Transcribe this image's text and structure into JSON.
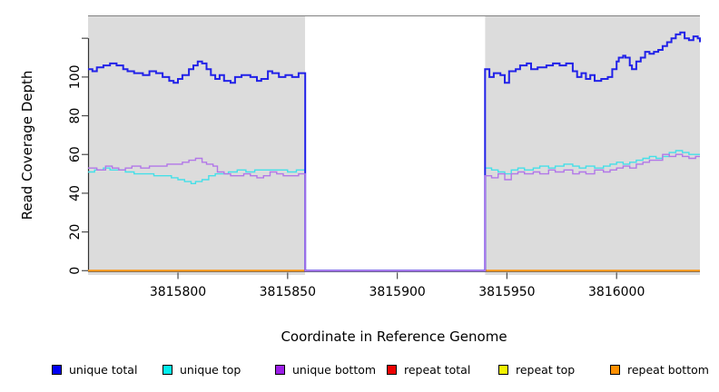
{
  "figure": {
    "xlabel": "Coordinate in Reference Genome",
    "ylabel": "Read Coverage Depth"
  },
  "chart_data": {
    "type": "line",
    "subtype": "step-coverage-plot",
    "title": "",
    "xlabel": "Coordinate in Reference Genome",
    "ylabel": "Read Coverage Depth",
    "xlim": [
      3815759,
      3816038
    ],
    "ylim": [
      -2.2,
      131.8
    ],
    "x_ticks": [
      3815800,
      3815850,
      3815900,
      3815950,
      3816000
    ],
    "y_ticks": [
      0,
      20,
      40,
      60,
      80,
      100,
      120
    ],
    "y_tick_labels": [
      "0",
      "20",
      "40",
      "60",
      "80",
      "100",
      ""
    ],
    "grid": false,
    "legend_position": "bottom",
    "panel_background": "#dcdcdc",
    "gap_region": {
      "start": 3815858,
      "end": 3815940,
      "fill": "#ffffff"
    },
    "data_regions": [
      {
        "start": 3815759,
        "end": 3815858
      },
      {
        "start": 3815940,
        "end": 3816038
      }
    ],
    "axis_color": "#333333",
    "top_border_color": "#808080",
    "series": [
      {
        "name": "repeat total",
        "color": "#ee0000",
        "swatch": "#ee0000",
        "width": 1.4,
        "segments": [
          [
            [
              3815759,
              0
            ],
            [
              3815858,
              0
            ]
          ],
          [
            [
              3815940,
              0
            ],
            [
              3816038,
              0
            ]
          ]
        ]
      },
      {
        "name": "repeat top",
        "color": "#f2f200",
        "swatch": "#f2f200",
        "width": 1.4,
        "segments": [
          [
            [
              3815759,
              0
            ],
            [
              3815858,
              0
            ]
          ],
          [
            [
              3815940,
              0
            ],
            [
              3816038,
              0
            ]
          ]
        ]
      },
      {
        "name": "repeat bottom",
        "color": "#ff9412",
        "swatch": "#ff9000",
        "width": 2,
        "segments": [
          [
            [
              3815759,
              0
            ],
            [
              3815858,
              0
            ]
          ],
          [
            [
              3815940,
              0
            ],
            [
              3816038,
              0
            ]
          ]
        ]
      },
      {
        "name": "unique top",
        "color": "#45dfe8",
        "swatch": "#00eeee",
        "width": 1.4,
        "segments": [
          [
            [
              3815759,
              51
            ],
            [
              3815762,
              52
            ],
            [
              3815766,
              53
            ],
            [
              3815769,
              52
            ],
            [
              3815772,
              52
            ],
            [
              3815776,
              51
            ],
            [
              3815780,
              50
            ],
            [
              3815785,
              50
            ],
            [
              3815789,
              49
            ],
            [
              3815793,
              49
            ],
            [
              3815797,
              48
            ],
            [
              3815800,
              47
            ],
            [
              3815803,
              46
            ],
            [
              3815806,
              45
            ],
            [
              3815808,
              46
            ],
            [
              3815811,
              47
            ],
            [
              3815814,
              49
            ],
            [
              3815817,
              50
            ],
            [
              3815820,
              50
            ],
            [
              3815823,
              51
            ],
            [
              3815827,
              52
            ],
            [
              3815831,
              51
            ],
            [
              3815835,
              52
            ],
            [
              3815840,
              52
            ],
            [
              3815845,
              52
            ],
            [
              3815850,
              51
            ],
            [
              3815854,
              52
            ],
            [
              3815858,
              0
            ],
            [
              3815940,
              53
            ],
            [
              3815943,
              52
            ],
            [
              3815946,
              51
            ],
            [
              3815949,
              50
            ],
            [
              3815952,
              52
            ],
            [
              3815955,
              53
            ],
            [
              3815958,
              52
            ],
            [
              3815962,
              53
            ],
            [
              3815965,
              54
            ],
            [
              3815969,
              53
            ],
            [
              3815972,
              54
            ],
            [
              3815976,
              55
            ],
            [
              3815980,
              54
            ],
            [
              3815983,
              53
            ],
            [
              3815986,
              54
            ],
            [
              3815990,
              53
            ],
            [
              3815994,
              54
            ],
            [
              3815997,
              55
            ],
            [
              3816000,
              56
            ],
            [
              3816003,
              55
            ],
            [
              3816006,
              56
            ],
            [
              3816009,
              57
            ],
            [
              3816012,
              58
            ],
            [
              3816015,
              59
            ],
            [
              3816018,
              58
            ],
            [
              3816021,
              59
            ],
            [
              3816024,
              61
            ],
            [
              3816027,
              62
            ],
            [
              3816030,
              61
            ],
            [
              3816033,
              60
            ],
            [
              3816036,
              60
            ],
            [
              3816038,
              60
            ]
          ]
        ]
      },
      {
        "name": "unique total",
        "color": "#2222e8",
        "swatch": "#0000f5",
        "width": 2,
        "segments": [
          [
            [
              3815759,
              104
            ],
            [
              3815761,
              103
            ],
            [
              3815763,
              105
            ],
            [
              3815766,
              106
            ],
            [
              3815769,
              107
            ],
            [
              3815772,
              106
            ],
            [
              3815775,
              104
            ],
            [
              3815777,
              103
            ],
            [
              3815780,
              102
            ],
            [
              3815784,
              101
            ],
            [
              3815787,
              103
            ],
            [
              3815790,
              102
            ],
            [
              3815793,
              100
            ],
            [
              3815796,
              98
            ],
            [
              3815798,
              97
            ],
            [
              3815800,
              99
            ],
            [
              3815802,
              101
            ],
            [
              3815805,
              104
            ],
            [
              3815807,
              106
            ],
            [
              3815809,
              108
            ],
            [
              3815811,
              107
            ],
            [
              3815813,
              104
            ],
            [
              3815815,
              101
            ],
            [
              3815817,
              99
            ],
            [
              3815819,
              101
            ],
            [
              3815821,
              98
            ],
            [
              3815824,
              97
            ],
            [
              3815826,
              100
            ],
            [
              3815829,
              101
            ],
            [
              3815833,
              100
            ],
            [
              3815836,
              98
            ],
            [
              3815838,
              99
            ],
            [
              3815841,
              103
            ],
            [
              3815843,
              102
            ],
            [
              3815846,
              100
            ],
            [
              3815849,
              101
            ],
            [
              3815852,
              100
            ],
            [
              3815855,
              102
            ],
            [
              3815858,
              0
            ],
            [
              3815940,
              104
            ],
            [
              3815942,
              100
            ],
            [
              3815944,
              102
            ],
            [
              3815947,
              101
            ],
            [
              3815949,
              97
            ],
            [
              3815951,
              103
            ],
            [
              3815954,
              104
            ],
            [
              3815956,
              106
            ],
            [
              3815959,
              107
            ],
            [
              3815961,
              104
            ],
            [
              3815964,
              105
            ],
            [
              3815968,
              106
            ],
            [
              3815971,
              107
            ],
            [
              3815974,
              106
            ],
            [
              3815977,
              107
            ],
            [
              3815980,
              103
            ],
            [
              3815982,
              100
            ],
            [
              3815984,
              102
            ],
            [
              3815986,
              99
            ],
            [
              3815988,
              101
            ],
            [
              3815990,
              98
            ],
            [
              3815993,
              99
            ],
            [
              3815996,
              100
            ],
            [
              3815998,
              104
            ],
            [
              3816000,
              108
            ],
            [
              3816001,
              110
            ],
            [
              3816003,
              111
            ],
            [
              3816004,
              110
            ],
            [
              3816006,
              106
            ],
            [
              3816007,
              104
            ],
            [
              3816009,
              108
            ],
            [
              3816011,
              110
            ],
            [
              3816013,
              113
            ],
            [
              3816015,
              112
            ],
            [
              3816017,
              113
            ],
            [
              3816019,
              114
            ],
            [
              3816021,
              116
            ],
            [
              3816023,
              118
            ],
            [
              3816025,
              120
            ],
            [
              3816027,
              122
            ],
            [
              3816029,
              123
            ],
            [
              3816031,
              120
            ],
            [
              3816033,
              119
            ],
            [
              3816035,
              121
            ],
            [
              3816037,
              120
            ],
            [
              3816038,
              118
            ]
          ]
        ]
      },
      {
        "name": "unique bottom",
        "color": "#b277e8",
        "swatch": "#9c1fe8",
        "width": 1.4,
        "segments": [
          [
            [
              3815759,
              53
            ],
            [
              3815763,
              52
            ],
            [
              3815767,
              54
            ],
            [
              3815770,
              53
            ],
            [
              3815773,
              52
            ],
            [
              3815776,
              53
            ],
            [
              3815779,
              54
            ],
            [
              3815783,
              53
            ],
            [
              3815787,
              54
            ],
            [
              3815791,
              54
            ],
            [
              3815795,
              55
            ],
            [
              3815799,
              55
            ],
            [
              3815802,
              56
            ],
            [
              3815805,
              57
            ],
            [
              3815808,
              58
            ],
            [
              3815811,
              56
            ],
            [
              3815813,
              55
            ],
            [
              3815816,
              54
            ],
            [
              3815818,
              51
            ],
            [
              3815821,
              50
            ],
            [
              3815824,
              49
            ],
            [
              3815827,
              49
            ],
            [
              3815830,
              50
            ],
            [
              3815833,
              49
            ],
            [
              3815836,
              48
            ],
            [
              3815839,
              49
            ],
            [
              3815842,
              51
            ],
            [
              3815845,
              50
            ],
            [
              3815848,
              49
            ],
            [
              3815852,
              49
            ],
            [
              3815855,
              50
            ],
            [
              3815858,
              0
            ],
            [
              3815940,
              49
            ],
            [
              3815943,
              48
            ],
            [
              3815946,
              50
            ],
            [
              3815949,
              47
            ],
            [
              3815952,
              50
            ],
            [
              3815955,
              51
            ],
            [
              3815958,
              50
            ],
            [
              3815962,
              51
            ],
            [
              3815965,
              50
            ],
            [
              3815969,
              52
            ],
            [
              3815972,
              51
            ],
            [
              3815976,
              52
            ],
            [
              3815980,
              50
            ],
            [
              3815983,
              51
            ],
            [
              3815986,
              50
            ],
            [
              3815990,
              52
            ],
            [
              3815994,
              51
            ],
            [
              3815997,
              52
            ],
            [
              3816000,
              53
            ],
            [
              3816003,
              54
            ],
            [
              3816006,
              53
            ],
            [
              3816009,
              55
            ],
            [
              3816012,
              56
            ],
            [
              3816015,
              57
            ],
            [
              3816018,
              57
            ],
            [
              3816021,
              60
            ],
            [
              3816024,
              59
            ],
            [
              3816027,
              60
            ],
            [
              3816030,
              59
            ],
            [
              3816033,
              58
            ],
            [
              3816036,
              59
            ],
            [
              3816038,
              59
            ]
          ]
        ]
      }
    ],
    "legend": [
      {
        "label": "unique total",
        "color": "#0000f5"
      },
      {
        "label": "unique top",
        "color": "#00eeee"
      },
      {
        "label": "unique bottom",
        "color": "#9c1fe8"
      },
      {
        "label": "repeat total",
        "color": "#ee0000"
      },
      {
        "label": "repeat top",
        "color": "#f2f200"
      },
      {
        "label": "repeat bottom",
        "color": "#ff9000"
      }
    ]
  }
}
